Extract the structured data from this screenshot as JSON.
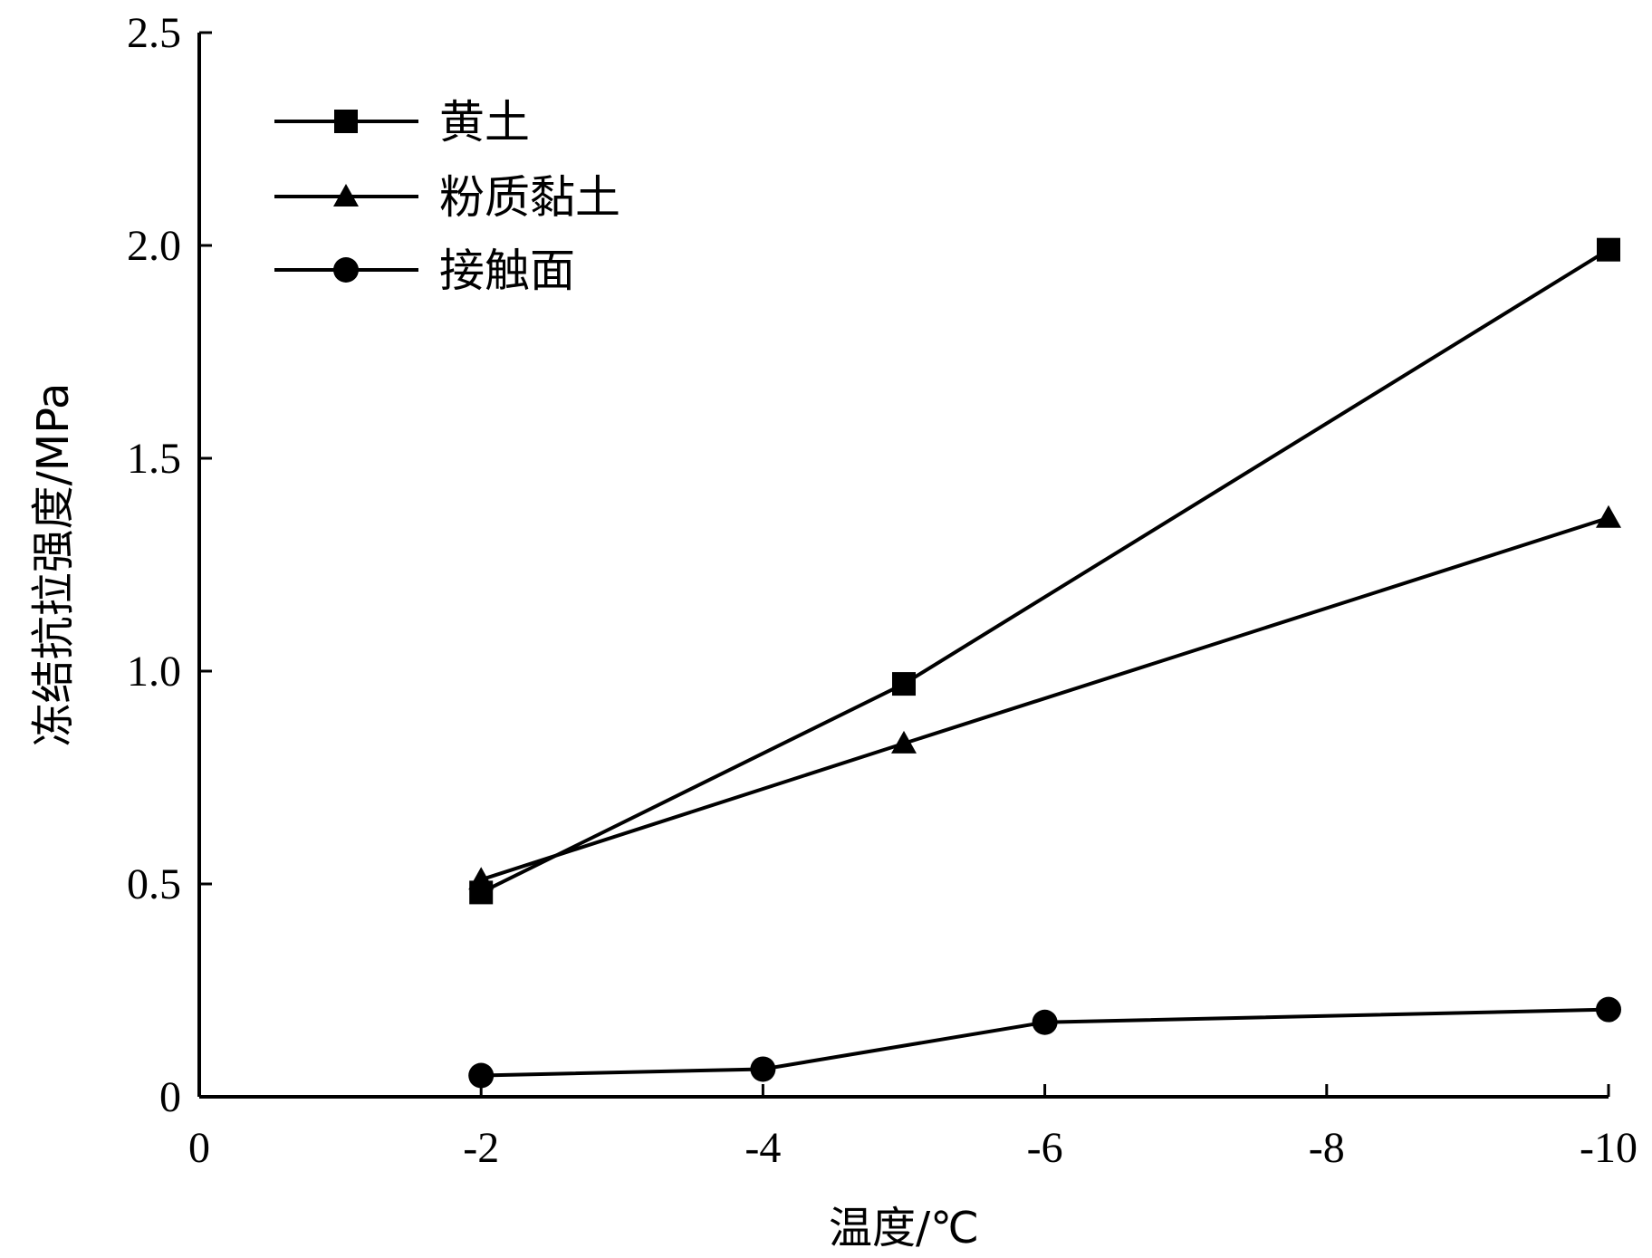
{
  "chart_data": {
    "type": "line",
    "xlabel": "温度/℃",
    "ylabel": "冻结抗拉强度/MPa",
    "xlim": [
      0,
      -10
    ],
    "ylim": [
      0,
      2.5
    ],
    "x_ticks": [
      0,
      -2,
      -4,
      -6,
      -8,
      -10
    ],
    "x_tick_labels": [
      "0",
      "-2",
      "-4",
      "-6",
      "-8",
      "-10"
    ],
    "y_ticks": [
      0,
      0.5,
      1.0,
      1.5,
      2.0,
      2.5
    ],
    "y_tick_labels": [
      "0",
      "0.5",
      "1.0",
      "1.5",
      "2.0",
      "2.5"
    ],
    "grid": false,
    "legend_position": "top-left",
    "series": [
      {
        "name": "黄土",
        "marker": "square",
        "x": [
          -2,
          -5,
          -10
        ],
        "y": [
          0.48,
          0.97,
          1.99
        ]
      },
      {
        "name": "粉质黏土",
        "marker": "triangle",
        "x": [
          -2,
          -5,
          -10
        ],
        "y": [
          0.51,
          0.83,
          1.36
        ]
      },
      {
        "name": "接触面",
        "marker": "circle",
        "x": [
          -2,
          -4,
          -6,
          -10
        ],
        "y": [
          0.05,
          0.065,
          0.175,
          0.205
        ]
      }
    ],
    "colors": {
      "line": "#000000",
      "marker": "#000000",
      "axis": "#000000"
    }
  }
}
